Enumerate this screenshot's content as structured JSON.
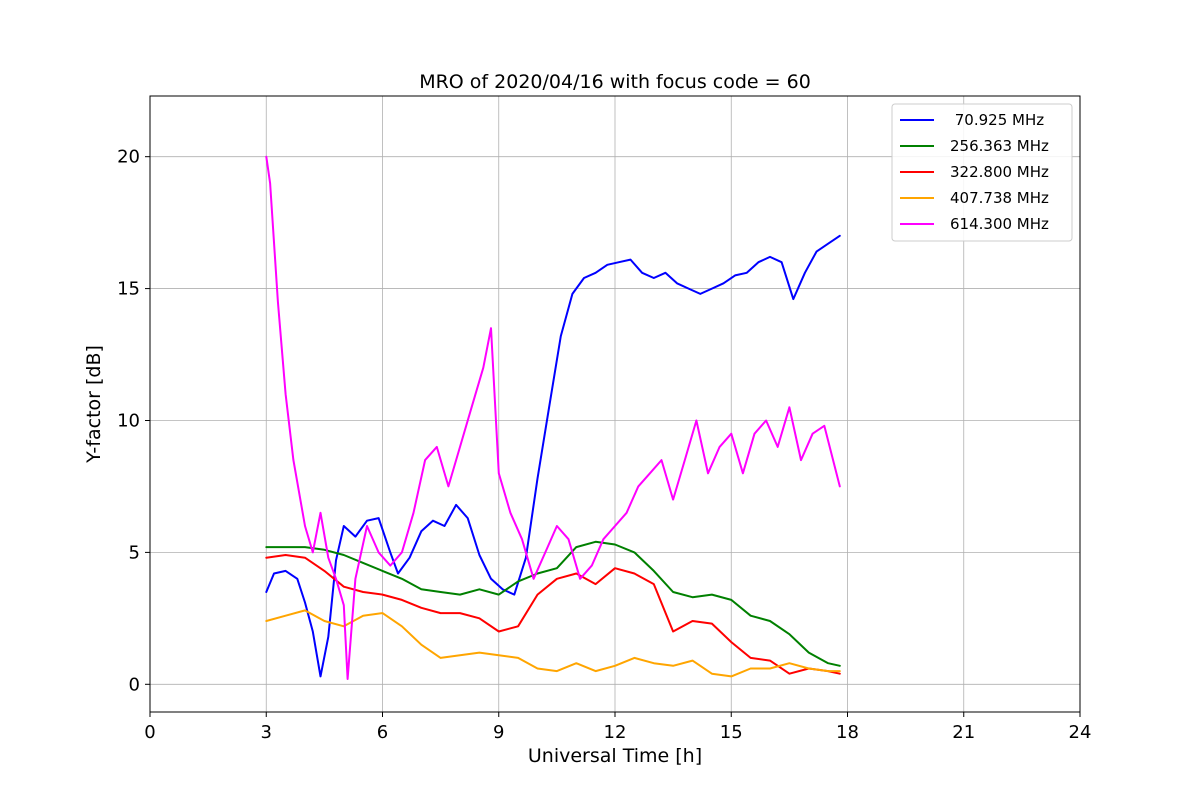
{
  "chart_data": {
    "type": "line",
    "title": "MRO of 2020/04/16 with focus code = 60",
    "xlabel": "Universal Time [h]",
    "ylabel": "Y-factor [dB]",
    "xlim": [
      0,
      24
    ],
    "ylim": [
      -1.05,
      22.3
    ],
    "xticks": [
      0,
      3,
      6,
      9,
      12,
      15,
      18,
      21,
      24
    ],
    "yticks": [
      0,
      5,
      10,
      15,
      20
    ],
    "grid": true,
    "legend_position": "top-right",
    "series": [
      {
        "name": " 70.925 MHz",
        "color": "#0000ff",
        "x": [
          3.0,
          3.2,
          3.5,
          3.8,
          4.0,
          4.2,
          4.4,
          4.6,
          4.8,
          5.0,
          5.3,
          5.6,
          5.9,
          6.2,
          6.4,
          6.7,
          7.0,
          7.3,
          7.6,
          7.9,
          8.2,
          8.5,
          8.8,
          9.1,
          9.4,
          9.7,
          10.0,
          10.3,
          10.6,
          10.9,
          11.2,
          11.5,
          11.8,
          12.1,
          12.4,
          12.7,
          13.0,
          13.3,
          13.6,
          13.9,
          14.2,
          14.5,
          14.8,
          15.1,
          15.4,
          15.7,
          16.0,
          16.3,
          16.6,
          16.9,
          17.2,
          17.5,
          17.8
        ],
        "y": [
          3.5,
          4.2,
          4.3,
          4.0,
          3.1,
          2.0,
          0.3,
          1.8,
          4.7,
          6.0,
          5.6,
          6.2,
          6.3,
          5.0,
          4.2,
          4.8,
          5.8,
          6.2,
          6.0,
          6.8,
          6.3,
          4.9,
          4.0,
          3.6,
          3.4,
          4.8,
          7.8,
          10.5,
          13.2,
          14.8,
          15.4,
          15.6,
          15.9,
          16.0,
          16.1,
          15.6,
          15.4,
          15.6,
          15.2,
          15.0,
          14.8,
          15.0,
          15.2,
          15.5,
          15.6,
          16.0,
          16.2,
          16.0,
          14.6,
          15.6,
          16.4,
          16.7,
          17.0
        ]
      },
      {
        "name": "256.363 MHz",
        "color": "#008000",
        "x": [
          3.0,
          3.5,
          4.0,
          4.5,
          5.0,
          5.5,
          6.0,
          6.5,
          7.0,
          7.5,
          8.0,
          8.5,
          9.0,
          9.5,
          10.0,
          10.5,
          11.0,
          11.5,
          12.0,
          12.5,
          13.0,
          13.5,
          14.0,
          14.5,
          15.0,
          15.5,
          16.0,
          16.5,
          17.0,
          17.5,
          17.8
        ],
        "y": [
          5.2,
          5.2,
          5.2,
          5.1,
          4.9,
          4.6,
          4.3,
          4.0,
          3.6,
          3.5,
          3.4,
          3.6,
          3.4,
          3.9,
          4.2,
          4.4,
          5.2,
          5.4,
          5.3,
          5.0,
          4.3,
          3.5,
          3.3,
          3.4,
          3.2,
          2.6,
          2.4,
          1.9,
          1.2,
          0.8,
          0.7
        ]
      },
      {
        "name": "322.800 MHz",
        "color": "#ff0000",
        "x": [
          3.0,
          3.5,
          4.0,
          4.5,
          5.0,
          5.5,
          6.0,
          6.5,
          7.0,
          7.5,
          8.0,
          8.5,
          9.0,
          9.5,
          10.0,
          10.5,
          11.0,
          11.5,
          12.0,
          12.5,
          13.0,
          13.5,
          14.0,
          14.5,
          15.0,
          15.5,
          16.0,
          16.5,
          17.0,
          17.5,
          17.8
        ],
        "y": [
          4.8,
          4.9,
          4.8,
          4.3,
          3.7,
          3.5,
          3.4,
          3.2,
          2.9,
          2.7,
          2.7,
          2.5,
          2.0,
          2.2,
          3.4,
          4.0,
          4.2,
          3.8,
          4.4,
          4.2,
          3.8,
          2.0,
          2.4,
          2.3,
          1.6,
          1.0,
          0.9,
          0.4,
          0.6,
          0.5,
          0.4
        ]
      },
      {
        "name": "407.738 MHz",
        "color": "#ffa500",
        "x": [
          3.0,
          3.5,
          4.0,
          4.5,
          5.0,
          5.5,
          6.0,
          6.5,
          7.0,
          7.5,
          8.0,
          8.5,
          9.0,
          9.5,
          10.0,
          10.5,
          11.0,
          11.5,
          12.0,
          12.5,
          13.0,
          13.5,
          14.0,
          14.5,
          15.0,
          15.5,
          16.0,
          16.5,
          17.0,
          17.5,
          17.8
        ],
        "y": [
          2.4,
          2.6,
          2.8,
          2.4,
          2.2,
          2.6,
          2.7,
          2.2,
          1.5,
          1.0,
          1.1,
          1.2,
          1.1,
          1.0,
          0.6,
          0.5,
          0.8,
          0.5,
          0.7,
          1.0,
          0.8,
          0.7,
          0.9,
          0.4,
          0.3,
          0.6,
          0.6,
          0.8,
          0.6,
          0.5,
          0.5
        ]
      },
      {
        "name": "614.300 MHz",
        "color": "#ff00ff",
        "x": [
          3.0,
          3.1,
          3.3,
          3.5,
          3.7,
          4.0,
          4.2,
          4.4,
          4.6,
          4.8,
          5.0,
          5.1,
          5.3,
          5.6,
          5.9,
          6.2,
          6.5,
          6.8,
          7.1,
          7.4,
          7.7,
          8.0,
          8.3,
          8.6,
          8.8,
          9.0,
          9.3,
          9.6,
          9.9,
          10.2,
          10.5,
          10.8,
          11.1,
          11.4,
          11.7,
          12.0,
          12.3,
          12.6,
          12.9,
          13.2,
          13.5,
          13.8,
          14.1,
          14.4,
          14.7,
          15.0,
          15.3,
          15.6,
          15.9,
          16.2,
          16.5,
          16.8,
          17.1,
          17.4,
          17.8
        ],
        "y": [
          20.0,
          19.0,
          14.5,
          11.0,
          8.5,
          6.0,
          5.0,
          6.5,
          4.8,
          4.0,
          3.0,
          0.2,
          4.0,
          6.0,
          5.0,
          4.5,
          5.0,
          6.5,
          8.5,
          9.0,
          7.5,
          9.0,
          10.5,
          12.0,
          13.5,
          8.0,
          6.5,
          5.5,
          4.0,
          5.0,
          6.0,
          5.5,
          4.0,
          4.5,
          5.5,
          6.0,
          6.5,
          7.5,
          8.0,
          8.5,
          7.0,
          8.5,
          10.0,
          8.0,
          9.0,
          9.5,
          8.0,
          9.5,
          10.0,
          9.0,
          10.5,
          8.5,
          9.5,
          9.8,
          7.5
        ]
      }
    ]
  }
}
